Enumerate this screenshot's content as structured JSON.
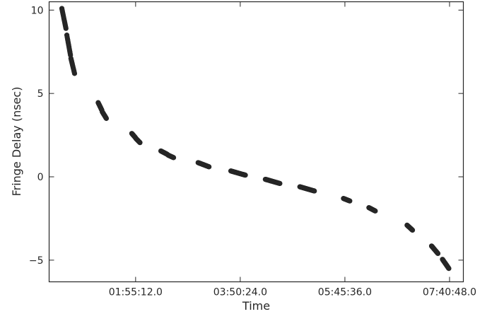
{
  "chart_data": {
    "type": "scatter",
    "title": "",
    "xlabel": "Time",
    "ylabel": "Fringe Delay (nsec)",
    "x_unit": "hh:mm:ss.s",
    "xlim": [
      "00:20:00",
      "07:56:00"
    ],
    "ylim": [
      -6.3,
      10.5
    ],
    "xticks": [
      "01:55:12.0",
      "03:50:24.0",
      "05:45:36.0",
      "07:40:48.0"
    ],
    "yticks": [
      -5,
      0,
      5,
      10
    ],
    "ytick_labels": [
      "−5",
      "0",
      "5",
      "10"
    ],
    "grid": false,
    "marker_color": "#262626",
    "series": [
      {
        "segments": [
          {
            "start": "00:34:00",
            "end": "00:38:30",
            "y_start": 10.1,
            "y_end": 8.9
          },
          {
            "start": "00:39:30",
            "end": "00:43:30",
            "y_start": 8.5,
            "y_end": 7.3
          },
          {
            "start": "00:44:00",
            "end": "00:48:00",
            "y_start": 7.1,
            "y_end": 6.2
          },
          {
            "start": "01:14:00",
            "end": "01:18:00",
            "y_start": 4.45,
            "y_end": 4.0
          },
          {
            "start": "01:18:30",
            "end": "01:23:00",
            "y_start": 3.9,
            "y_end": 3.5
          },
          {
            "start": "01:51:00",
            "end": "01:55:00",
            "y_start": 2.6,
            "y_end": 2.35
          },
          {
            "start": "01:55:30",
            "end": "02:00:00",
            "y_start": 2.3,
            "y_end": 2.05
          },
          {
            "start": "02:23:00",
            "end": "02:30:00",
            "y_start": 1.55,
            "y_end": 1.35
          },
          {
            "start": "02:31:00",
            "end": "02:37:00",
            "y_start": 1.3,
            "y_end": 1.15
          },
          {
            "start": "03:04:00",
            "end": "03:16:00",
            "y_start": 0.85,
            "y_end": 0.6
          },
          {
            "start": "03:40:00",
            "end": "03:56:00",
            "y_start": 0.35,
            "y_end": 0.1
          },
          {
            "start": "04:18:00",
            "end": "04:34:00",
            "y_start": -0.15,
            "y_end": -0.4
          },
          {
            "start": "04:56:00",
            "end": "05:12:00",
            "y_start": -0.6,
            "y_end": -0.85
          },
          {
            "start": "05:44:00",
            "end": "05:51:00",
            "y_start": -1.3,
            "y_end": -1.45
          },
          {
            "start": "06:12:00",
            "end": "06:19:00",
            "y_start": -1.85,
            "y_end": -2.05
          },
          {
            "start": "06:54:00",
            "end": "07:00:00",
            "y_start": -2.9,
            "y_end": -3.2
          },
          {
            "start": "07:21:00",
            "end": "07:28:00",
            "y_start": -4.15,
            "y_end": -4.6
          },
          {
            "start": "07:33:00",
            "end": "07:40:00",
            "y_start": -4.95,
            "y_end": -5.5
          }
        ]
      }
    ]
  }
}
